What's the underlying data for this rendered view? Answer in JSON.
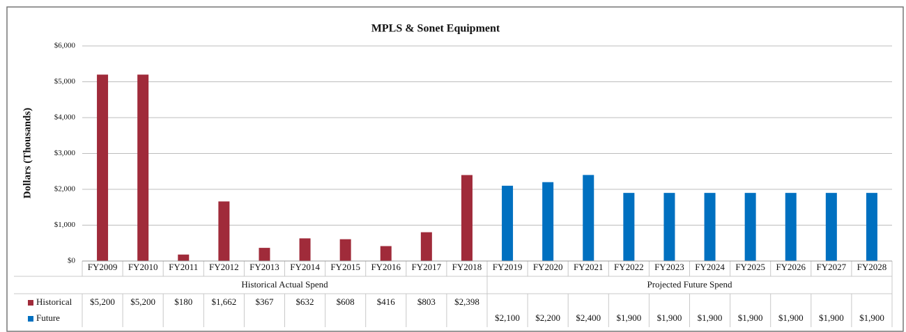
{
  "chart_data": {
    "type": "bar",
    "title": "MPLS & Sonet Equipment",
    "y_label": "Dollars (Thousands)",
    "categories": [
      "FY2009",
      "FY2010",
      "FY2011",
      "FY2012",
      "FY2013",
      "FY2014",
      "FY2015",
      "FY2016",
      "FY2017",
      "FY2018",
      "FY2019",
      "FY2020",
      "FY2021",
      "FY2022",
      "FY2023",
      "FY2024",
      "FY2025",
      "FY2026",
      "FY2027",
      "FY2028"
    ],
    "groups": [
      {
        "label": "Historical Actual Spend",
        "span": [
          0,
          9
        ]
      },
      {
        "label": "Projected Future Spend",
        "span": [
          10,
          19
        ]
      }
    ],
    "series": [
      {
        "name": "Historical",
        "color": "#a02b3a",
        "values": [
          5200,
          5200,
          180,
          1662,
          367,
          632,
          608,
          416,
          803,
          2398,
          null,
          null,
          null,
          null,
          null,
          null,
          null,
          null,
          null,
          null
        ],
        "value_labels": [
          "$5,200",
          "$5,200",
          "$180",
          "$1,662",
          "$367",
          "$632",
          "$608",
          "$416",
          "$803",
          "$2,398",
          null,
          null,
          null,
          null,
          null,
          null,
          null,
          null,
          null,
          null
        ]
      },
      {
        "name": "Future",
        "color": "#0070c0",
        "values": [
          null,
          null,
          null,
          null,
          null,
          null,
          null,
          null,
          null,
          null,
          2100,
          2200,
          2400,
          1900,
          1900,
          1900,
          1900,
          1900,
          1900,
          1900
        ],
        "value_labels": [
          null,
          null,
          null,
          null,
          null,
          null,
          null,
          null,
          null,
          null,
          "$2,100",
          "$2,200",
          "$2,400",
          "$1,900",
          "$1,900",
          "$1,900",
          "$1,900",
          "$1,900",
          "$1,900",
          "$1,900"
        ]
      }
    ],
    "ylim": [
      0,
      6000
    ],
    "yticks": [
      {
        "value": 0,
        "label": "$0"
      },
      {
        "value": 1000,
        "label": "$1,000"
      },
      {
        "value": 2000,
        "label": "$2,000"
      },
      {
        "value": 3000,
        "label": "$3,000"
      },
      {
        "value": 4000,
        "label": "$4,000"
      },
      {
        "value": 5000,
        "label": "$5,000"
      },
      {
        "value": 6000,
        "label": "$6,000"
      }
    ],
    "grid": true
  }
}
